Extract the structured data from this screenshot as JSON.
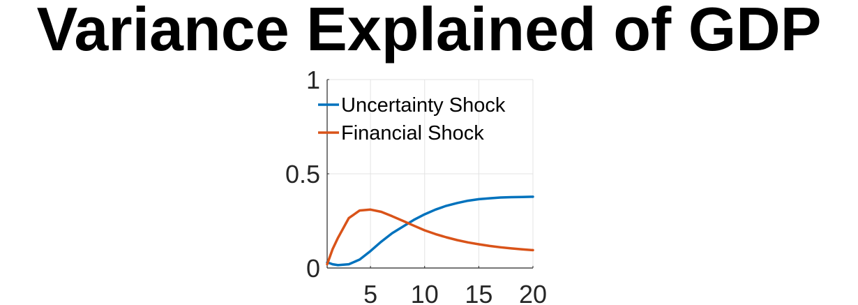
{
  "chart_data": {
    "type": "line",
    "title": "Variance Explained of GDP",
    "xlabel": "",
    "ylabel": "",
    "xlim": [
      1,
      20
    ],
    "ylim": [
      0,
      1
    ],
    "x_ticks": [
      5,
      10,
      15,
      20
    ],
    "x_tick_labels": [
      "5",
      "10",
      "15",
      "20"
    ],
    "y_ticks": [
      0,
      0.5,
      1
    ],
    "y_tick_labels": [
      "0",
      "0.5",
      "1"
    ],
    "grid": true,
    "legend_position": "top-left",
    "x": [
      1,
      1.5,
      2,
      3,
      4,
      5,
      6,
      7,
      8,
      9,
      10,
      11,
      12,
      13,
      14,
      15,
      16,
      17,
      18,
      19,
      20
    ],
    "series": [
      {
        "name": "Uncertainty Shock",
        "color": "#0072BD",
        "values": [
          0.03,
          0.02,
          0.015,
          0.02,
          0.045,
          0.09,
          0.14,
          0.185,
          0.22,
          0.255,
          0.285,
          0.31,
          0.33,
          0.345,
          0.357,
          0.365,
          0.37,
          0.374,
          0.376,
          0.377,
          0.378
        ]
      },
      {
        "name": "Financial Shock",
        "color": "#D95319",
        "values": [
          0.02,
          0.1,
          0.16,
          0.265,
          0.305,
          0.31,
          0.298,
          0.275,
          0.25,
          0.225,
          0.2,
          0.18,
          0.163,
          0.148,
          0.136,
          0.126,
          0.117,
          0.11,
          0.104,
          0.099,
          0.095
        ]
      }
    ]
  }
}
